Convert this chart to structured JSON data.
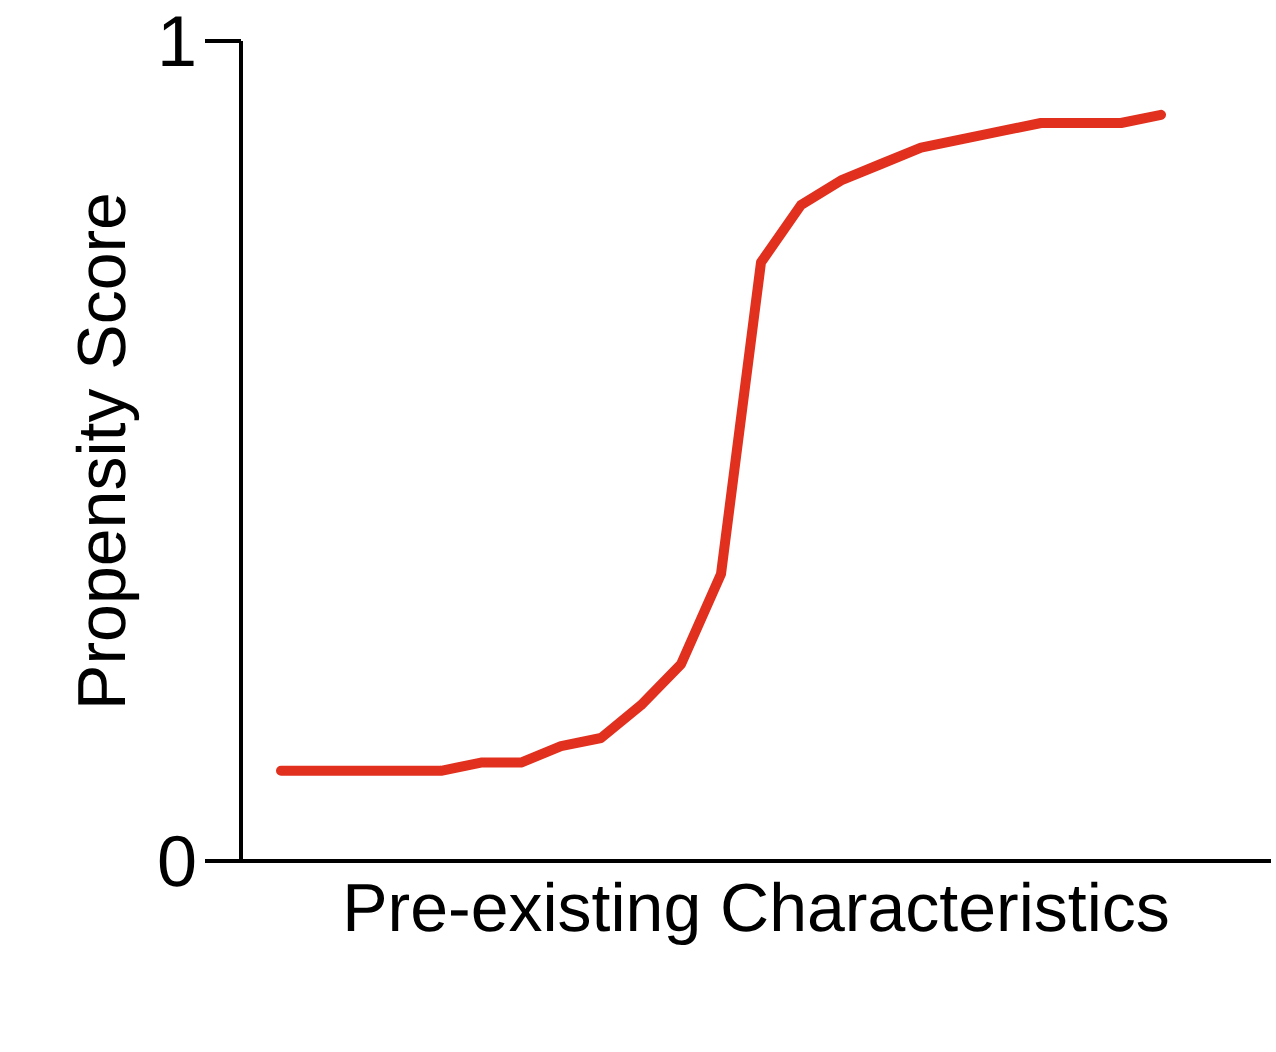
{
  "chart_data": {
    "type": "line",
    "xlabel": "Pre-existing Characteristics",
    "ylabel": "Propensity Score",
    "categories": [
      null,
      null,
      null,
      null,
      null,
      null,
      null,
      null,
      null,
      null,
      null,
      null,
      null,
      null,
      null,
      null,
      null,
      null,
      null,
      null,
      null,
      null,
      null
    ],
    "series": [
      {
        "color": "#e1301e",
        "values": [
          0.11,
          0.11,
          0.11,
          0.11,
          0.11,
          0.12,
          0.12,
          0.14,
          0.15,
          0.19,
          0.24,
          0.35,
          0.73,
          0.8,
          0.83,
          0.85,
          0.87,
          0.88,
          0.89,
          0.9,
          0.9,
          0.9,
          0.91
        ]
      }
    ],
    "ylim": [
      0,
      1
    ],
    "yticks": [
      0,
      1
    ],
    "tick_labels": "y",
    "marker": "none",
    "line_style": "solid"
  }
}
